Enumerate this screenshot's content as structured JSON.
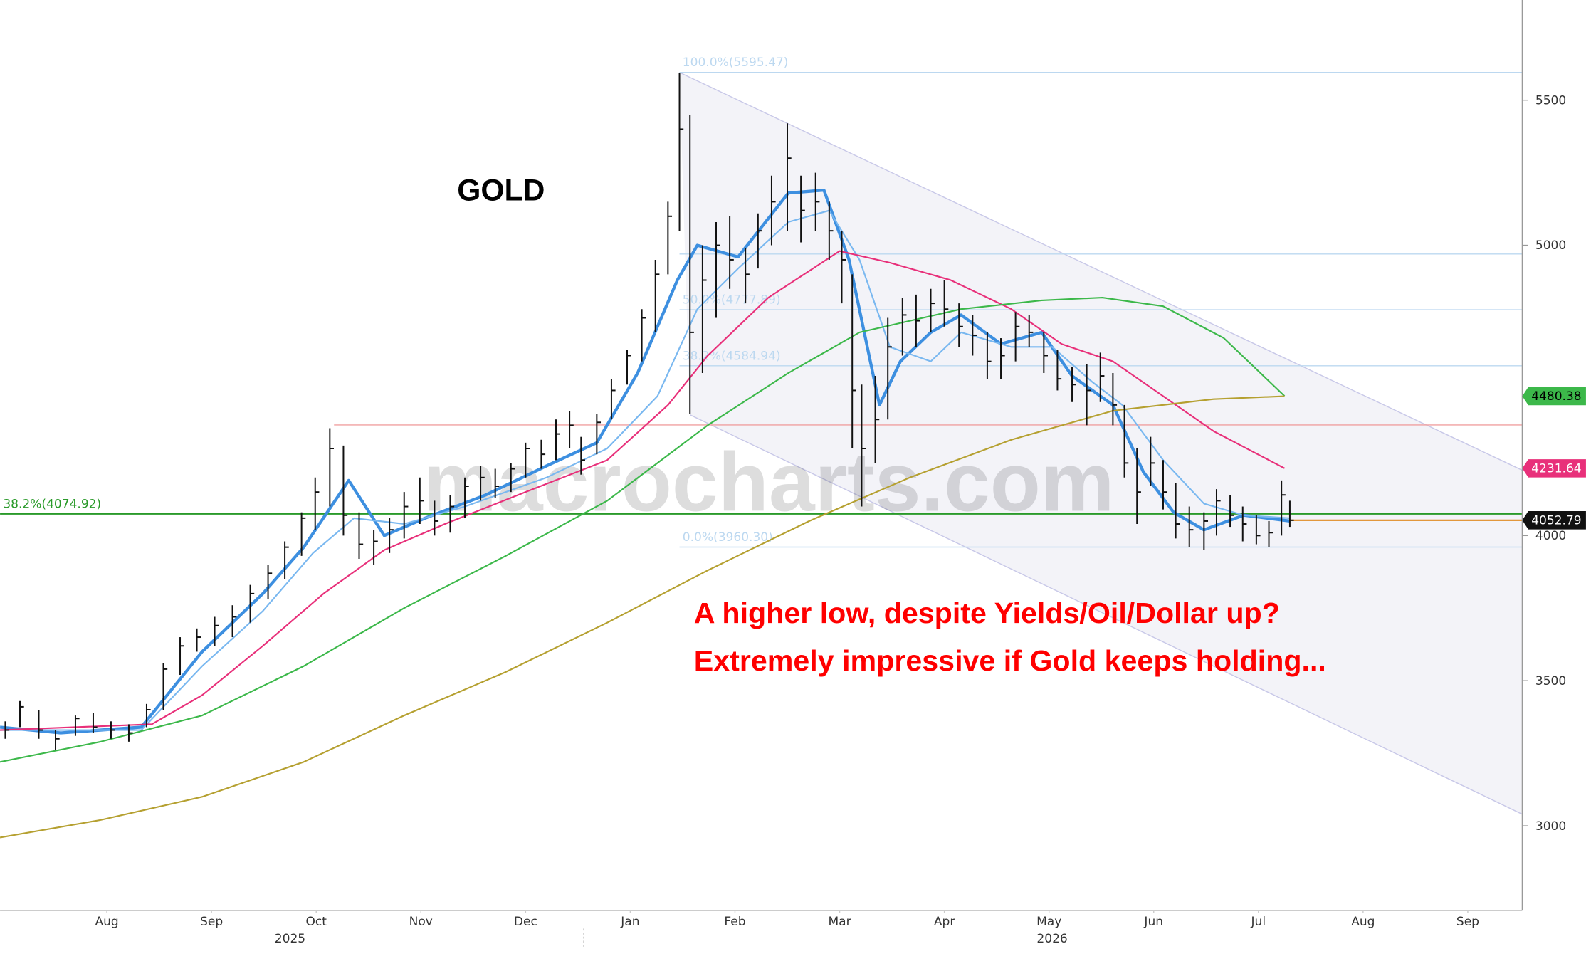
{
  "chart_data": {
    "type": "ohlc",
    "title": "GOLD",
    "watermark": "macrocharts.com",
    "annotations": [
      "A higher low, despite Yields/Oil/Dollar up?",
      "Extremely impressive if Gold keeps holding..."
    ],
    "annotation_color": "#ff0000",
    "color": "#111111",
    "xlim": [
      -0.52,
      14.02
    ],
    "ylim": [
      2709,
      5845
    ],
    "yticks": [
      3000,
      3500,
      4000,
      5000,
      5500
    ],
    "xticks": [
      {
        "value": 0.5,
        "label": "Aug"
      },
      {
        "value": 1.5,
        "label": "Sep"
      },
      {
        "value": 2.5,
        "label": "Oct"
      },
      {
        "value": 3.5,
        "label": "Nov"
      },
      {
        "value": 4.5,
        "label": "Dec"
      },
      {
        "value": 5.5,
        "label": "Jan"
      },
      {
        "value": 6.5,
        "label": "Feb"
      },
      {
        "value": 7.5,
        "label": "Mar"
      },
      {
        "value": 8.5,
        "label": "Apr"
      },
      {
        "value": 9.5,
        "label": "May"
      },
      {
        "value": 10.5,
        "label": "Jun"
      },
      {
        "value": 11.5,
        "label": "Jul"
      },
      {
        "value": 12.5,
        "label": "Aug"
      },
      {
        "value": 13.5,
        "label": "Sep"
      }
    ],
    "year_ticks": [
      {
        "value": 2.25,
        "label": "2025"
      },
      {
        "value": 9.53,
        "label": "2026"
      }
    ],
    "x": [
      -0.47,
      -0.33,
      -0.15,
      0.01,
      0.2,
      0.37,
      0.54,
      0.71,
      0.88,
      1.04,
      1.2,
      1.36,
      1.53,
      1.7,
      1.87,
      2.04,
      2.2,
      2.36,
      2.49,
      2.63,
      2.76,
      2.91,
      3.05,
      3.2,
      3.34,
      3.49,
      3.63,
      3.78,
      3.92,
      4.07,
      4.21,
      4.36,
      4.5,
      4.65,
      4.79,
      4.92,
      5.03,
      5.18,
      5.32,
      5.47,
      5.61,
      5.74,
      5.86,
      5.97,
      6.07,
      6.19,
      6.32,
      6.45,
      6.6,
      6.72,
      6.85,
      7.0,
      7.13,
      7.27,
      7.4,
      7.52,
      7.62,
      7.71,
      7.84,
      7.96,
      8.1,
      8.23,
      8.37,
      8.5,
      8.64,
      8.77,
      8.91,
      9.04,
      9.18,
      9.31,
      9.45,
      9.58,
      9.72,
      9.86,
      9.99,
      10.11,
      10.22,
      10.34,
      10.47,
      10.59,
      10.71,
      10.84,
      10.98,
      11.1,
      11.23,
      11.35,
      11.48,
      11.6,
      11.72,
      11.8
    ],
    "high": [
      3360,
      3430,
      3400,
      3330,
      3380,
      3390,
      3360,
      3350,
      3420,
      3560,
      3650,
      3680,
      3720,
      3760,
      3830,
      3900,
      3980,
      4080,
      4200,
      4370,
      4310,
      4080,
      4020,
      4060,
      4150,
      4200,
      4120,
      4140,
      4200,
      4240,
      4230,
      4250,
      4320,
      4330,
      4400,
      4430,
      4340,
      4420,
      4540,
      4640,
      4780,
      4950,
      5150,
      5595,
      5450,
      5000,
      5080,
      5100,
      4990,
      5110,
      5240,
      5420,
      5240,
      5250,
      5150,
      5050,
      4900,
      4520,
      4550,
      4750,
      4820,
      4830,
      4850,
      4880,
      4800,
      4760,
      4700,
      4680,
      4770,
      4760,
      4700,
      4640,
      4580,
      4590,
      4630,
      4560,
      4450,
      4300,
      4340,
      4260,
      4180,
      4100,
      4080,
      4160,
      4140,
      4100,
      4070,
      4050,
      4190,
      4120
    ],
    "low": [
      3300,
      3340,
      3300,
      3260,
      3310,
      3320,
      3300,
      3290,
      3340,
      3400,
      3520,
      3600,
      3620,
      3650,
      3700,
      3780,
      3850,
      3930,
      4020,
      4100,
      4000,
      3920,
      3900,
      3940,
      3990,
      4040,
      4000,
      4010,
      4060,
      4120,
      4130,
      4150,
      4200,
      4230,
      4260,
      4300,
      4210,
      4280,
      4400,
      4520,
      4600,
      4700,
      4900,
      5050,
      4420,
      4560,
      4750,
      4850,
      4800,
      4920,
      5000,
      5050,
      5010,
      5050,
      4950,
      4800,
      4300,
      4100,
      4250,
      4400,
      4620,
      4650,
      4700,
      4720,
      4650,
      4620,
      4540,
      4540,
      4600,
      4650,
      4560,
      4500,
      4460,
      4380,
      4460,
      4380,
      4200,
      4040,
      4170,
      4090,
      3990,
      3960,
      3950,
      4000,
      4030,
      3980,
      3970,
      3960,
      4000,
      4030
    ],
    "close": [
      3330,
      3410,
      3330,
      3300,
      3370,
      3340,
      3330,
      3320,
      3400,
      3540,
      3620,
      3650,
      3690,
      3720,
      3800,
      3870,
      3960,
      4060,
      4150,
      4300,
      4070,
      3970,
      3980,
      4020,
      4100,
      4120,
      4050,
      4100,
      4170,
      4200,
      4170,
      4230,
      4300,
      4280,
      4350,
      4380,
      4260,
      4390,
      4500,
      4620,
      4750,
      4900,
      5100,
      5400,
      4700,
      4880,
      5000,
      4950,
      4900,
      5050,
      5150,
      5300,
      5120,
      5150,
      5050,
      4950,
      4500,
      4300,
      4400,
      4650,
      4760,
      4740,
      4800,
      4780,
      4720,
      4690,
      4600,
      4620,
      4720,
      4700,
      4620,
      4540,
      4520,
      4500,
      4550,
      4450,
      4250,
      4150,
      4250,
      4150,
      4040,
      4020,
      4050,
      4120,
      4070,
      4040,
      4000,
      4010,
      4140,
      4052.79
    ],
    "close_line_color": "#e08a20",
    "lines": [
      {
        "color": "#3d8fe0",
        "width": 3,
        "x": [
          -0.52,
          0.06,
          0.83,
          1.41,
          1.99,
          2.38,
          2.81,
          3.15,
          3.54,
          4.12,
          4.7,
          5.18,
          5.57,
          5.95,
          6.14,
          6.53,
          7.01,
          7.35,
          7.59,
          7.88,
          8.08,
          8.37,
          8.66,
          9.04,
          9.43,
          9.72,
          10.11,
          10.4,
          10.69,
          10.98,
          11.36,
          11.8
        ],
        "values": [
          3340,
          3320,
          3340,
          3600,
          3800,
          3960,
          4190,
          4000,
          4060,
          4140,
          4240,
          4320,
          4560,
          4880,
          5000,
          4960,
          5180,
          5190,
          4950,
          4450,
          4600,
          4700,
          4760,
          4660,
          4700,
          4550,
          4450,
          4220,
          4080,
          4020,
          4070,
          4050
        ]
      },
      {
        "color": "#7ab8f0",
        "width": 1.5,
        "x": [
          -0.52,
          0.83,
          1.41,
          1.99,
          2.47,
          2.86,
          3.34,
          3.92,
          4.7,
          5.28,
          5.76,
          6.14,
          6.53,
          7.01,
          7.4,
          7.69,
          7.98,
          8.37,
          8.66,
          9.14,
          9.53,
          9.91,
          10.2,
          10.59,
          10.98,
          11.36,
          11.8
        ],
        "values": [
          3330,
          3330,
          3550,
          3740,
          3940,
          4060,
          4040,
          4100,
          4200,
          4300,
          4480,
          4780,
          4920,
          5080,
          5120,
          4950,
          4650,
          4600,
          4700,
          4650,
          4650,
          4530,
          4450,
          4260,
          4110,
          4070,
          4060
        ]
      },
      {
        "color": "#e8307a",
        "width": 1.5,
        "x": [
          -0.52,
          0.93,
          1.41,
          1.99,
          2.57,
          3.15,
          3.73,
          4.5,
          5.28,
          5.86,
          6.24,
          6.82,
          7.5,
          7.98,
          8.56,
          9.14,
          9.62,
          10.11,
          10.59,
          11.07,
          11.75
        ],
        "values": [
          3330,
          3350,
          3450,
          3620,
          3800,
          3950,
          4040,
          4150,
          4260,
          4450,
          4620,
          4820,
          4980,
          4940,
          4880,
          4780,
          4660,
          4600,
          4480,
          4360,
          4231.64
        ]
      },
      {
        "color": "#3cb84a",
        "width": 1.5,
        "x": [
          -0.52,
          0.44,
          1.41,
          2.38,
          3.34,
          4.31,
          5.28,
          6.24,
          7.01,
          7.69,
          8.66,
          9.43,
          10.01,
          10.59,
          11.17,
          11.75
        ],
        "values": [
          3220,
          3290,
          3380,
          3550,
          3750,
          3930,
          4120,
          4380,
          4560,
          4700,
          4780,
          4810,
          4820,
          4790,
          4680,
          4480.38
        ]
      },
      {
        "color": "#b5a030",
        "width": 1.5,
        "x": [
          -0.52,
          0.44,
          1.41,
          2.38,
          3.34,
          4.31,
          5.28,
          6.24,
          7.21,
          8.17,
          9.14,
          10.11,
          11.07,
          11.75
        ],
        "values": [
          2960,
          3020,
          3100,
          3220,
          3380,
          3530,
          3700,
          3880,
          4050,
          4200,
          4330,
          4430,
          4470,
          4480
        ]
      }
    ],
    "levels": [
      {
        "value": 5595.47,
        "start": 5.97,
        "label": "100.0%(5595.47)",
        "color": "#bcd8f0"
      },
      {
        "value": 4970,
        "start": 5.97,
        "color": "#bcd8f0"
      },
      {
        "value": 4777.89,
        "start": 5.97,
        "label": "50.0%(4777.89)",
        "color": "#bcd8f0"
      },
      {
        "value": 4584.94,
        "start": 5.97,
        "label": "38.2%(4584.94)",
        "color": "#bcd8f0"
      },
      {
        "value": 3960.3,
        "start": 5.97,
        "label": "0.0%(3960.30)",
        "color": "#bcd8f0"
      },
      {
        "value": 4381,
        "start": 2.67,
        "color": "#f0a0a0"
      },
      {
        "value": 4074.92,
        "start": -0.52,
        "label": "38.2%(4074.92)",
        "color": "#2a9a2a"
      }
    ],
    "channel": {
      "color": "#c8c8e8",
      "fill": "#f3f3f8",
      "upper": {
        "x": [
          5.97,
          14.02
        ],
        "values": [
          5595.47,
          4225
        ]
      },
      "lower": {
        "x": [
          6.07,
          14.02
        ],
        "values": [
          4416,
          3040
        ]
      }
    },
    "end_labels": [
      {
        "value": 4480.38,
        "color": "#3cb84a",
        "text_color": "#000000"
      },
      {
        "value": 4231.64,
        "color": "#e8307a",
        "text_color": "#ffffff"
      },
      {
        "value": 4052.79,
        "color": "#111111",
        "text_color": "#ffffff"
      }
    ]
  }
}
